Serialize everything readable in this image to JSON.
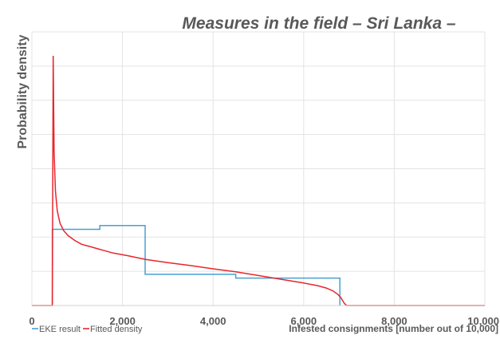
{
  "chart_data": {
    "type": "line",
    "title": "Measures in the field – Sri Lanka –",
    "xlabel": "Infested consignments [number out of 10,000]",
    "ylabel": "Probability density",
    "xlim": [
      0,
      10000
    ],
    "ylim": [
      0,
      1
    ],
    "x_ticks": [
      0,
      2000,
      4000,
      6000,
      8000,
      10000
    ],
    "x_tick_labels": [
      "0",
      "2,000",
      "4,000",
      "6,000",
      "8,000",
      "10,000"
    ],
    "y_gridlines": 8,
    "grid": true,
    "legend_position": "bottom-left",
    "series": [
      {
        "name": "EKE result",
        "color": "#4a9fd4",
        "style": "step",
        "x": [
          450,
          450,
          1500,
          1500,
          2500,
          2500,
          4500,
          4500,
          6800,
          6800
        ],
        "y": [
          0,
          0.305,
          0.305,
          0.32,
          0.32,
          0.125,
          0.125,
          0.11,
          0.11,
          0
        ]
      },
      {
        "name": "Fitted density",
        "color": "#e8262c",
        "style": "line",
        "x": [
          0,
          450,
          470,
          490,
          520,
          560,
          620,
          700,
          800,
          950,
          1100,
          1300,
          1500,
          1800,
          2100,
          2500,
          3000,
          3500,
          4000,
          4500,
          5000,
          5500,
          6000,
          6300,
          6500,
          6650,
          6750,
          6820,
          6860,
          6900,
          6950,
          10000
        ],
        "y": [
          0,
          0,
          1.0,
          0.62,
          0.46,
          0.38,
          0.33,
          0.3,
          0.28,
          0.26,
          0.245,
          0.235,
          0.225,
          0.21,
          0.2,
          0.185,
          0.172,
          0.16,
          0.147,
          0.135,
          0.12,
          0.105,
          0.09,
          0.08,
          0.07,
          0.058,
          0.045,
          0.032,
          0.02,
          0.008,
          0,
          0
        ]
      }
    ]
  }
}
